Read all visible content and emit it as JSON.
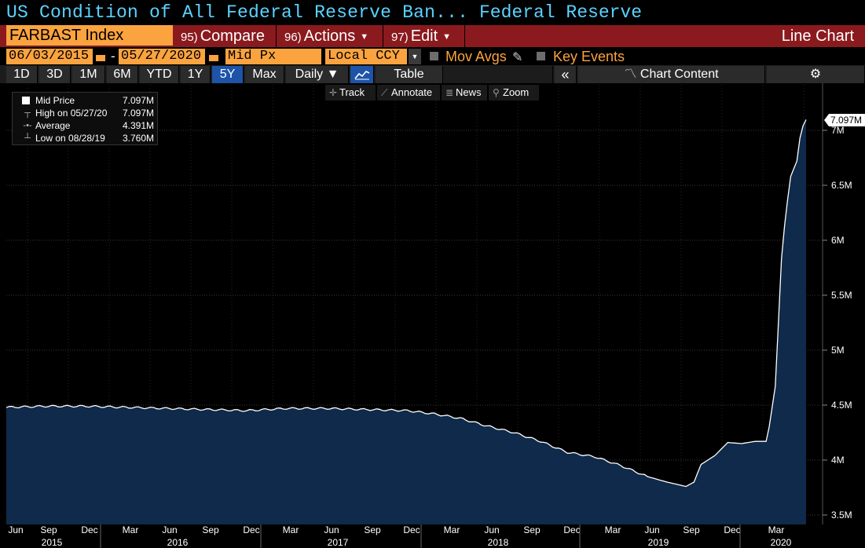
{
  "title": {
    "security": "US Condition of All Federal Reserve Ban...",
    "source": "Federal Reserve"
  },
  "command_bar": {
    "ticker": "FARBAST Index",
    "compare": {
      "num": "95)",
      "label": "Compare"
    },
    "actions": {
      "num": "96)",
      "label": "Actions"
    },
    "edit": {
      "num": "97)",
      "label": "Edit"
    },
    "chart_type": "Line Chart"
  },
  "date_bar": {
    "start_date": "06/03/2015",
    "dash": "-",
    "end_date": "05/27/2020",
    "field": "Mid Px",
    "currency": "Local CCY",
    "mov_avgs": "Mov Avgs",
    "key_events": "Key Events"
  },
  "periods": [
    "1D",
    "3D",
    "1M",
    "6M",
    "YTD",
    "1Y",
    "5Y",
    "Max"
  ],
  "active_period": "5Y",
  "frequency": "Daily",
  "table_label": "Table",
  "chart_content_label": "Chart Content",
  "tools": [
    "Track",
    "Annotate",
    "News",
    "Zoom"
  ],
  "legend": [
    {
      "label": "Mid Price",
      "value": "7.097M"
    },
    {
      "label": "High on 05/27/20",
      "value": "7.097M"
    },
    {
      "label": "Average",
      "value": "4.391M"
    },
    {
      "label": "Low on 08/28/19",
      "value": "3.760M"
    }
  ],
  "last_value_tag": "7.097M",
  "colors": {
    "accent": "#fba33f",
    "title": "#5ad2ff",
    "menu": "#8b1a1e",
    "area": "#0f2a4a",
    "line": "#ffffff",
    "active": "#1d54a8"
  },
  "chart_data": {
    "type": "area",
    "ylim": [
      3.5,
      7.25
    ],
    "y_ticks": [
      3.5,
      4,
      4.5,
      5,
      5.5,
      6,
      6.5,
      7
    ],
    "y_tick_labels": [
      "3.5M",
      "4M",
      "4.5M",
      "5M",
      "5.5M",
      "6M",
      "6.5M",
      "7M"
    ],
    "x_month_labels": [
      "Jun",
      "Sep",
      "Dec",
      "Mar",
      "Jun",
      "Sep",
      "Dec",
      "Mar",
      "Jun",
      "Sep",
      "Dec",
      "Mar",
      "Jun",
      "Sep",
      "Dec",
      "Mar",
      "Jun",
      "Sep",
      "Dec",
      "Mar"
    ],
    "x_year_labels": [
      "2015",
      "2016",
      "2017",
      "2018",
      "2019",
      "2020"
    ],
    "x_start": "2015-06-03",
    "x_end": "2020-05-27",
    "series": [
      {
        "name": "Mid Price",
        "points": [
          [
            "2015-06-03",
            4.48
          ],
          [
            "2015-09-01",
            4.49
          ],
          [
            "2015-12-01",
            4.49
          ],
          [
            "2016-03-01",
            4.48
          ],
          [
            "2016-06-01",
            4.47
          ],
          [
            "2016-09-01",
            4.46
          ],
          [
            "2016-12-01",
            4.45
          ],
          [
            "2017-03-01",
            4.47
          ],
          [
            "2017-06-01",
            4.47
          ],
          [
            "2017-09-01",
            4.46
          ],
          [
            "2017-12-01",
            4.45
          ],
          [
            "2018-02-01",
            4.42
          ],
          [
            "2018-04-01",
            4.38
          ],
          [
            "2018-06-01",
            4.31
          ],
          [
            "2018-08-01",
            4.25
          ],
          [
            "2018-10-01",
            4.17
          ],
          [
            "2018-12-01",
            4.07
          ],
          [
            "2019-02-01",
            4.03
          ],
          [
            "2019-04-01",
            3.95
          ],
          [
            "2019-06-01",
            3.85
          ],
          [
            "2019-07-15",
            3.8
          ],
          [
            "2019-08-28",
            3.76
          ],
          [
            "2019-09-15",
            3.8
          ],
          [
            "2019-10-01",
            3.96
          ],
          [
            "2019-11-01",
            4.04
          ],
          [
            "2019-12-01",
            4.16
          ],
          [
            "2020-01-01",
            4.15
          ],
          [
            "2020-02-01",
            4.17
          ],
          [
            "2020-02-26",
            4.17
          ],
          [
            "2020-03-04",
            4.3
          ],
          [
            "2020-03-18",
            4.67
          ],
          [
            "2020-03-25",
            5.25
          ],
          [
            "2020-04-01",
            5.83
          ],
          [
            "2020-04-08",
            6.13
          ],
          [
            "2020-04-15",
            6.37
          ],
          [
            "2020-04-22",
            6.58
          ],
          [
            "2020-04-29",
            6.65
          ],
          [
            "2020-05-06",
            6.72
          ],
          [
            "2020-05-13",
            6.93
          ],
          [
            "2020-05-20",
            7.04
          ],
          [
            "2020-05-27",
            7.097
          ]
        ]
      }
    ]
  }
}
